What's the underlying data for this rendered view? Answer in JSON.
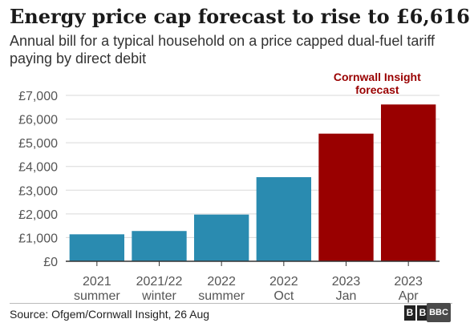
{
  "header": {
    "title": "Energy price cap forecast to rise to £6,616",
    "subtitle": "Annual bill for a typical household on a price capped dual-fuel tariff paying by direct debit"
  },
  "footer": {
    "source": "Source: Ofgem/Cornwall Insight, 26 Aug",
    "logo_letters": [
      "B",
      "B",
      "C"
    ],
    "badge": "BBC"
  },
  "colors": {
    "actual": "#2a8bb0",
    "forecast": "#990000",
    "grid": "#d9d9d9",
    "axis_text": "#555555"
  },
  "chart_data": {
    "type": "bar",
    "title": "Energy price cap forecast to rise to £6,616",
    "subtitle": "Annual bill for a typical household on a price capped dual-fuel tariff paying by direct debit",
    "xlabel": "",
    "ylabel": "",
    "ylim": [
      0,
      7000
    ],
    "grid": true,
    "yticks": [
      0,
      1000,
      2000,
      3000,
      4000,
      5000,
      6000,
      7000
    ],
    "ytick_labels": [
      "£0",
      "£1,000",
      "£2,000",
      "£3,000",
      "£4,000",
      "£5,000",
      "£6,000",
      "£7,000"
    ],
    "categories": [
      [
        "2021",
        "summer"
      ],
      [
        "2021/22",
        "winter"
      ],
      [
        "2022",
        "summer"
      ],
      [
        "2022",
        "Oct"
      ],
      [
        "2023",
        "Jan"
      ],
      [
        "2023",
        "Apr"
      ]
    ],
    "values": [
      1138,
      1277,
      1971,
      3549,
      5386,
      6616
    ],
    "forecast": [
      false,
      false,
      false,
      false,
      true,
      true
    ],
    "annotations": [
      {
        "lines": [
          "Cornwall Insight",
          "forecast"
        ],
        "applies_to": "forecast"
      }
    ]
  }
}
